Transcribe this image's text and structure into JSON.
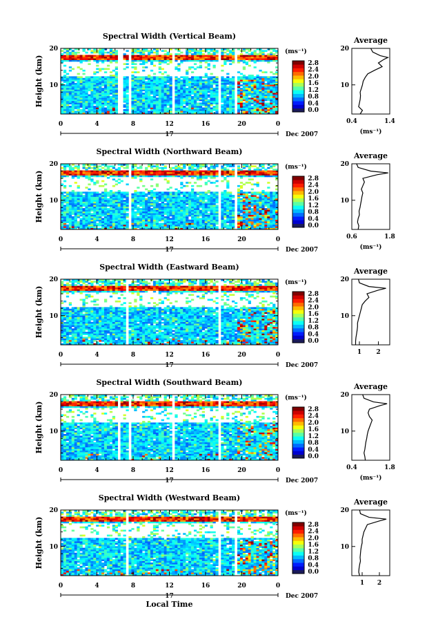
{
  "figure": {
    "xlabel": "Local Time",
    "date_label": "Dec 2007",
    "day_label": "17"
  },
  "chart_data": [
    {
      "type": "heatmap",
      "title": "Spectral Width (Vertical Beam)",
      "ylabel": "Height (km)",
      "xlabel": "Local Time",
      "x_ticks": [
        "0",
        "4",
        "8",
        "12",
        "16",
        "20",
        "0"
      ],
      "y_ticks": [
        "20",
        "10"
      ],
      "xlim": [
        0,
        24
      ],
      "ylim": [
        2,
        20
      ],
      "colorbar": {
        "unit": "(ms⁻¹)",
        "ticks": [
          "2.8",
          "2.4",
          "2.0",
          "1.6",
          "1.2",
          "0.8",
          "0.4",
          "0.0"
        ],
        "range": [
          0,
          2.8
        ]
      },
      "gaps_hours": [
        [
          6.4,
          6.8
        ],
        [
          7.6,
          7.9
        ],
        [
          12.3,
          12.5
        ],
        [
          17.4,
          17.6
        ],
        [
          19.3,
          19.5
        ]
      ],
      "layer_km": 17.5,
      "average": {
        "title": "Average",
        "xlabel": "(ms⁻¹)",
        "xlim": [
          0.4,
          1.4
        ],
        "x_ticks": [
          "0.4",
          "1.4"
        ],
        "y_ticks": [
          "20",
          "10"
        ],
        "heights_km": [
          2,
          3,
          4,
          5,
          6,
          7,
          8,
          9,
          10,
          11,
          12,
          13,
          14,
          15,
          16,
          17,
          17.5,
          18,
          19,
          20
        ],
        "values": [
          0.62,
          0.68,
          0.58,
          0.6,
          0.62,
          0.63,
          0.62,
          0.65,
          0.68,
          0.7,
          0.75,
          0.82,
          1.0,
          1.2,
          1.1,
          1.25,
          1.35,
          1.15,
          0.95,
          0.9
        ]
      }
    },
    {
      "type": "heatmap",
      "title": "Spectral Width (Northward Beam)",
      "ylabel": "Height (km)",
      "xlabel": "Local Time",
      "x_ticks": [
        "0",
        "4",
        "8",
        "12",
        "16",
        "20",
        "0"
      ],
      "y_ticks": [
        "20",
        "10"
      ],
      "xlim": [
        0,
        24
      ],
      "ylim": [
        2,
        20
      ],
      "colorbar": {
        "unit": "(ms⁻¹)",
        "ticks": [
          "2.8",
          "2.4",
          "2.0",
          "1.6",
          "1.2",
          "0.8",
          "0.4",
          "0.0"
        ],
        "range": [
          0,
          2.8
        ]
      },
      "gaps_hours": [
        [
          7.6,
          7.9
        ],
        [
          12.8,
          13.0
        ],
        [
          17.4,
          17.6
        ],
        [
          19.3,
          19.5
        ]
      ],
      "layer_km": 17.5,
      "average": {
        "title": "Average",
        "xlabel": "(ms⁻¹)",
        "xlim": [
          0.6,
          1.8
        ],
        "x_ticks": [
          "0.6",
          "1.8"
        ],
        "y_ticks": [
          "20",
          "10"
        ],
        "heights_km": [
          2,
          3,
          4,
          5,
          6,
          7,
          8,
          9,
          10,
          11,
          12,
          13,
          14,
          15,
          16,
          17,
          17.5,
          18,
          19,
          20
        ],
        "values": [
          0.8,
          0.82,
          0.78,
          0.8,
          0.84,
          0.83,
          0.86,
          0.88,
          0.9,
          0.92,
          0.95,
          0.9,
          0.95,
          1.0,
          0.95,
          1.4,
          1.75,
          1.2,
          0.8,
          0.75
        ]
      }
    },
    {
      "type": "heatmap",
      "title": "Spectral Width (Eastward Beam)",
      "ylabel": "Height (km)",
      "xlabel": "Local Time",
      "x_ticks": [
        "0",
        "4",
        "8",
        "12",
        "16",
        "20",
        "0"
      ],
      "y_ticks": [
        "20",
        "10"
      ],
      "xlim": [
        0,
        24
      ],
      "ylim": [
        2,
        20
      ],
      "colorbar": {
        "unit": "(ms⁻¹)",
        "ticks": [
          "2.8",
          "2.4",
          "2.0",
          "1.6",
          "1.2",
          "0.8",
          "0.4",
          "0.0"
        ],
        "range": [
          0,
          2.8
        ]
      },
      "gaps_hours": [
        [
          7.1,
          7.4
        ],
        [
          7.7,
          7.9
        ],
        [
          12.8,
          13.0
        ],
        [
          17.4,
          17.6
        ]
      ],
      "layer_km": 17.5,
      "average": {
        "title": "Average",
        "xlabel": "",
        "xlim": [
          0.6,
          2.6
        ],
        "x_ticks": [
          "1",
          "2"
        ],
        "y_ticks": [
          "20",
          "10"
        ],
        "heights_km": [
          2,
          3,
          4,
          5,
          6,
          7,
          8,
          9,
          10,
          11,
          12,
          13,
          14,
          15,
          16,
          17,
          17.5,
          18,
          19,
          20
        ],
        "values": [
          0.8,
          0.8,
          0.82,
          0.85,
          0.88,
          0.9,
          0.9,
          0.95,
          1.0,
          1.05,
          1.1,
          1.15,
          1.3,
          1.5,
          1.4,
          2.0,
          2.4,
          1.5,
          1.0,
          0.95
        ]
      }
    },
    {
      "type": "heatmap",
      "title": "Spectral Width (Southward Beam)",
      "ylabel": "Height (km)",
      "xlabel": "Local Time",
      "x_ticks": [
        "0",
        "4",
        "8",
        "12",
        "16",
        "20",
        "0"
      ],
      "y_ticks": [
        "20",
        "10"
      ],
      "xlim": [
        0,
        24
      ],
      "ylim": [
        2,
        20
      ],
      "colorbar": {
        "unit": "(ms⁻¹)",
        "ticks": [
          "2.8",
          "2.4",
          "2.0",
          "1.6",
          "1.2",
          "0.8",
          "0.4",
          "0.0"
        ],
        "range": [
          0,
          2.8
        ]
      },
      "gaps_hours": [
        [
          6.4,
          6.7
        ],
        [
          7.6,
          7.9
        ],
        [
          12.4,
          12.6
        ],
        [
          17.4,
          17.6
        ],
        [
          19.4,
          19.6
        ]
      ],
      "layer_km": 17.5,
      "average": {
        "title": "Average",
        "xlabel": "(ms⁻¹)",
        "xlim": [
          0.4,
          1.8
        ],
        "x_ticks": [
          "0.4",
          "1.8"
        ],
        "y_ticks": [
          "20",
          "10"
        ],
        "heights_km": [
          2,
          3,
          4,
          5,
          6,
          7,
          8,
          9,
          10,
          11,
          12,
          13,
          14,
          15,
          16,
          17,
          17.5,
          18,
          19,
          20
        ],
        "values": [
          0.9,
          0.88,
          0.85,
          0.88,
          0.9,
          0.92,
          0.95,
          0.97,
          1.0,
          1.05,
          1.1,
          1.15,
          1.05,
          1.0,
          1.05,
          1.45,
          1.7,
          1.2,
          0.85,
          0.8
        ]
      }
    },
    {
      "type": "heatmap",
      "title": "Spectral Width (Westward Beam)",
      "ylabel": "Height (km)",
      "xlabel": "Local Time",
      "x_ticks": [
        "0",
        "4",
        "8",
        "12",
        "16",
        "20",
        "0"
      ],
      "y_ticks": [
        "20",
        "10"
      ],
      "xlim": [
        0,
        24
      ],
      "ylim": [
        2,
        20
      ],
      "colorbar": {
        "unit": "(ms⁻¹)",
        "ticks": [
          "2.8",
          "2.4",
          "2.0",
          "1.6",
          "1.2",
          "0.8",
          "0.4",
          "0.0"
        ],
        "range": [
          0,
          2.8
        ]
      },
      "gaps_hours": [
        [
          7.1,
          7.4
        ],
        [
          12.8,
          13.0
        ],
        [
          17.4,
          17.6
        ],
        [
          19.3,
          19.5
        ]
      ],
      "layer_km": 17.5,
      "average": {
        "title": "Average",
        "xlabel": "",
        "xlim": [
          0.4,
          2.6
        ],
        "x_ticks": [
          "1",
          "2"
        ],
        "y_ticks": [
          "20",
          "10"
        ],
        "heights_km": [
          2,
          3,
          4,
          5,
          6,
          7,
          8,
          9,
          10,
          11,
          12,
          13,
          14,
          15,
          16,
          17,
          17.5,
          18,
          19,
          20
        ],
        "values": [
          0.85,
          0.8,
          0.82,
          0.85,
          0.9,
          0.88,
          0.9,
          0.92,
          0.95,
          1.0,
          1.0,
          1.05,
          1.1,
          1.2,
          1.3,
          2.0,
          2.4,
          1.4,
          0.9,
          0.85
        ]
      }
    }
  ]
}
